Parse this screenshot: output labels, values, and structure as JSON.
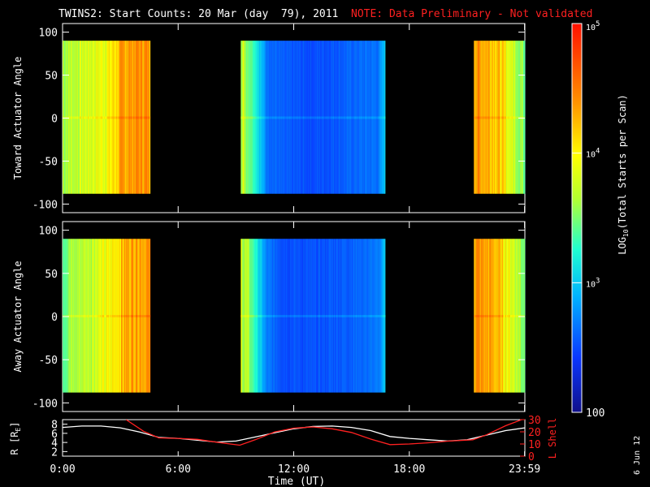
{
  "title": {
    "main": "TWINS2: Start Counts: 20 Mar (day  79), 2011",
    "note": "NOTE: Data Preliminary - Not validated",
    "note_color": "#ff2020"
  },
  "stamp": "6 Jun 12",
  "chart_data": [
    {
      "type": "heatmap",
      "panel": "toward",
      "ylabel": "Toward Actuator Angle",
      "ylim": [
        -110,
        110
      ],
      "yticks": [
        -100,
        -50,
        0,
        50,
        100
      ],
      "xlim_hours": [
        0,
        24
      ],
      "data_ylim": [
        -88,
        90
      ],
      "segments": [
        {
          "start_h": 0.0,
          "end_h": 4.55,
          "profile": [
            [
              0.0,
              0.55
            ],
            [
              1.2,
              0.6
            ],
            [
              2.4,
              0.66
            ],
            [
              3.2,
              0.78
            ],
            [
              3.8,
              0.8
            ],
            [
              4.55,
              0.8
            ]
          ]
        },
        {
          "start_h": 9.25,
          "end_h": 16.75,
          "profile": [
            [
              9.25,
              0.6
            ],
            [
              9.9,
              0.45
            ],
            [
              10.6,
              0.22
            ],
            [
              11.5,
              0.18
            ],
            [
              13.0,
              0.17
            ],
            [
              15.0,
              0.2
            ],
            [
              16.4,
              0.22
            ],
            [
              16.75,
              0.35
            ]
          ]
        },
        {
          "start_h": 21.35,
          "end_h": 23.99,
          "profile": [
            [
              21.35,
              0.8
            ],
            [
              22.5,
              0.75
            ],
            [
              23.3,
              0.6
            ],
            [
              23.99,
              0.5
            ]
          ]
        }
      ]
    },
    {
      "type": "heatmap",
      "panel": "away",
      "ylabel": "Away Actuator Angle",
      "ylim": [
        -110,
        110
      ],
      "yticks": [
        -100,
        -50,
        0,
        50,
        100
      ],
      "xlim_hours": [
        0,
        24
      ],
      "data_ylim": [
        -88,
        90
      ],
      "segments": [
        {
          "start_h": 0.0,
          "end_h": 4.55,
          "profile": [
            [
              0.0,
              0.5
            ],
            [
              1.2,
              0.58
            ],
            [
              2.4,
              0.64
            ],
            [
              3.2,
              0.76
            ],
            [
              3.8,
              0.8
            ],
            [
              4.55,
              0.78
            ]
          ]
        },
        {
          "start_h": 9.25,
          "end_h": 16.75,
          "profile": [
            [
              9.25,
              0.6
            ],
            [
              9.9,
              0.45
            ],
            [
              10.6,
              0.22
            ],
            [
              11.5,
              0.18
            ],
            [
              13.0,
              0.17
            ],
            [
              15.0,
              0.2
            ],
            [
              16.4,
              0.22
            ],
            [
              16.75,
              0.35
            ]
          ]
        },
        {
          "start_h": 21.35,
          "end_h": 23.99,
          "profile": [
            [
              21.35,
              0.8
            ],
            [
              22.5,
              0.75
            ],
            [
              23.3,
              0.62
            ],
            [
              23.99,
              0.5
            ]
          ]
        }
      ]
    },
    {
      "type": "line",
      "panel": "orbit",
      "ylabel_left": "R [R",
      "ylabel_left_sub": "E",
      "ylabel_left_close": "]",
      "ylabel_right": "L Shell",
      "ylim_left": [
        1,
        9
      ],
      "yticks_left": [
        2,
        4,
        6,
        8
      ],
      "ylim_right": [
        0,
        30
      ],
      "yticks_right": [
        0,
        10,
        20,
        30
      ],
      "xlim_hours": [
        0,
        24
      ],
      "series": [
        {
          "axis": "left",
          "color": "#ffffff",
          "x": [
            0,
            1,
            2,
            3,
            4,
            5,
            6,
            7,
            8,
            9,
            10,
            11,
            12,
            13,
            14,
            15,
            16,
            17,
            18,
            19,
            20,
            21,
            22,
            23,
            24
          ],
          "y": [
            7.3,
            7.6,
            7.6,
            7.2,
            6.3,
            5.1,
            4.9,
            4.5,
            4.1,
            4.3,
            5.2,
            6.1,
            7.0,
            7.5,
            7.6,
            7.3,
            6.6,
            5.3,
            4.9,
            4.6,
            4.3,
            4.6,
            5.6,
            6.6,
            7.2
          ]
        },
        {
          "axis": "right",
          "color": "#ff2020",
          "x": [
            3.3,
            4.2,
            5.0,
            6.0,
            7.0,
            8.0,
            9.2,
            10.0,
            11.0,
            12.0,
            13.0,
            14.0,
            15.0,
            16.0,
            17.0,
            18.0,
            19.0,
            20.0,
            21.3,
            22.0,
            23.0,
            24.0
          ],
          "y": [
            30,
            20.5,
            15.0,
            14.6,
            13.8,
            11.5,
            9.0,
            13.5,
            19.8,
            23.0,
            24.0,
            22.5,
            19.5,
            14.0,
            9.5,
            10.0,
            11.0,
            12.3,
            13.5,
            17.5,
            25.0,
            31.0
          ]
        }
      ]
    }
  ],
  "time_axis": {
    "ticks": [
      {
        "h": 0,
        "label": "0:00"
      },
      {
        "h": 6,
        "label": "6:00"
      },
      {
        "h": 12,
        "label": "12:00"
      },
      {
        "h": 18,
        "label": "18:00"
      },
      {
        "h": 23.983,
        "label": "23:59"
      }
    ],
    "label": "Time (UT)"
  },
  "colorbar": {
    "label_pre": "LOG",
    "label_sub": "10",
    "label_post": "(Total Starts per Scan)",
    "ticks": [
      {
        "frac": 1.0,
        "base": "10",
        "exp": "5"
      },
      {
        "frac": 0.6667,
        "base": "10",
        "exp": "4"
      },
      {
        "frac": 0.3333,
        "base": "10",
        "exp": "3"
      },
      {
        "frac": 0.0,
        "base": "100",
        "exp": ""
      }
    ]
  }
}
